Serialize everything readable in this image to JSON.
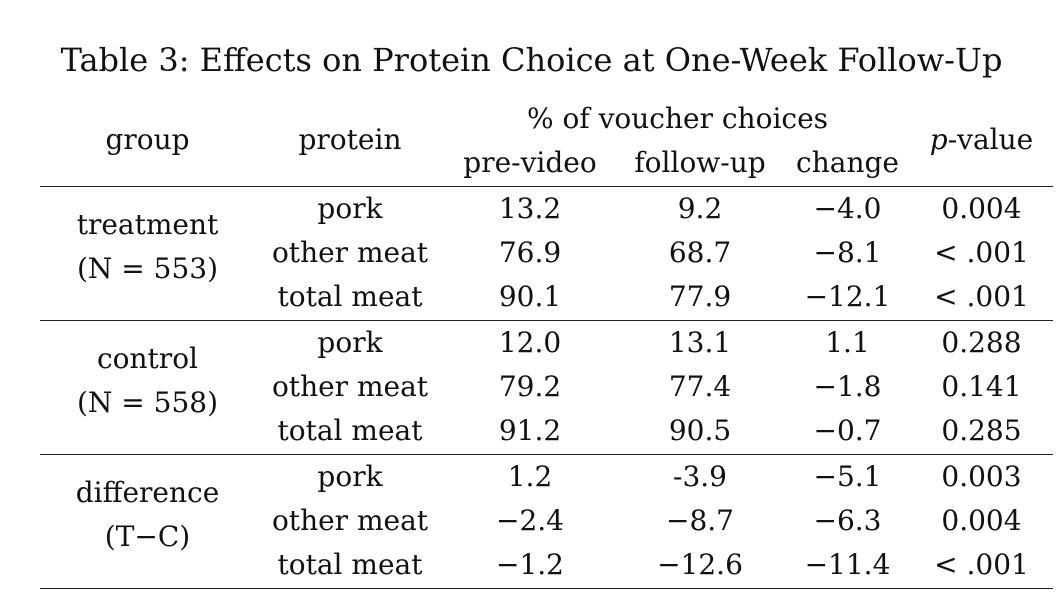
{
  "caption": "Table 3: Effects on Protein Choice at One-Week Follow-Up",
  "headers": {
    "group": "group",
    "protein": "protein",
    "voucher_span": "% of voucher choices",
    "pre_video": "pre-video",
    "follow_up": "follow-up",
    "change": "change",
    "p_value_italic": "p",
    "p_value_rest": "-value"
  },
  "groups": [
    {
      "label": "treatment",
      "n_label": "(N = 553)",
      "rows": [
        {
          "protein": "pork",
          "pre_video": "13.2",
          "follow_up": "9.2",
          "change": "−4.0",
          "p_value": "0.004"
        },
        {
          "protein": "other meat",
          "pre_video": "76.9",
          "follow_up": "68.7",
          "change": "−8.1",
          "p_value": "< .001"
        },
        {
          "protein": "total meat",
          "pre_video": "90.1",
          "follow_up": "77.9",
          "change": "−12.1",
          "p_value": "< .001"
        }
      ]
    },
    {
      "label": "control",
      "n_label": "(N = 558)",
      "rows": [
        {
          "protein": "pork",
          "pre_video": "12.0",
          "follow_up": "13.1",
          "change": "1.1",
          "p_value": "0.288"
        },
        {
          "protein": "other meat",
          "pre_video": "79.2",
          "follow_up": "77.4",
          "change": "−1.8",
          "p_value": "0.141"
        },
        {
          "protein": "total meat",
          "pre_video": "91.2",
          "follow_up": "90.5",
          "change": "−0.7",
          "p_value": "0.285"
        }
      ]
    },
    {
      "label": "difference",
      "n_label": "(T−C)",
      "rows": [
        {
          "protein": "pork",
          "pre_video": "1.2",
          "follow_up": "-3.9",
          "change": "−5.1",
          "p_value": "0.003"
        },
        {
          "protein": "other meat",
          "pre_video": "−2.4",
          "follow_up": "−8.7",
          "change": "−6.3",
          "p_value": "0.004"
        },
        {
          "protein": "total meat",
          "pre_video": "−1.2",
          "follow_up": "−12.6",
          "change": "−11.4",
          "p_value": "< .001"
        }
      ]
    }
  ]
}
